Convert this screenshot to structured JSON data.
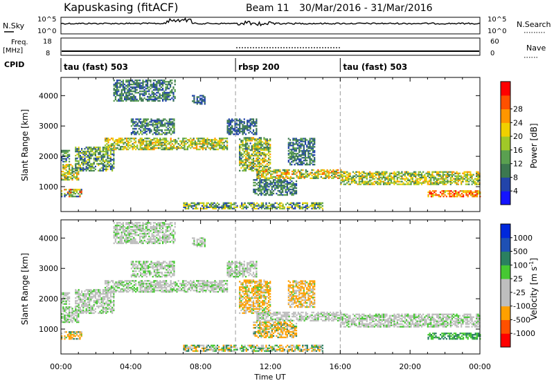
{
  "header": {
    "station": "Kapuskasing (fitACF)",
    "beam": "Beam 11",
    "dates": "30/Mar/2016 - 31/Mar/2016"
  },
  "strip": {
    "nsky_label": "N.Sky",
    "nsky_ticks": [
      "10^5",
      "10^0"
    ],
    "nsearch_label": "N.Search",
    "nsearch_ticks": [
      "10^5",
      "10^0"
    ],
    "freq_label": "Freq.",
    "freq_unit": "[MHz]",
    "freq_ticks": [
      "18",
      "8"
    ],
    "nave_label": "Nave",
    "nave_ticks": [
      "60",
      "0"
    ],
    "cpid_label": "CPID",
    "cpid_segments": [
      {
        "label": "tau (fast) 503",
        "start_h": 0,
        "end_h": 10
      },
      {
        "label": "rbsp 200",
        "start_h": 10,
        "end_h": 16
      },
      {
        "label": "tau (fast) 503",
        "start_h": 16,
        "end_h": 24
      }
    ]
  },
  "colors": {
    "power": [
      "#1414ff",
      "#2244aa",
      "#3c7850",
      "#5aa050",
      "#a0c828",
      "#f0d000",
      "#ff9600",
      "#ff5000",
      "#ff0000"
    ],
    "velocity": [
      "#ff0000",
      "#ff5000",
      "#ffa000",
      "#bebebe",
      "#bebebe",
      "#46c832",
      "#2a8060",
      "#1e50b4",
      "#0028dc"
    ]
  },
  "chart_data": [
    {
      "type": "heatmap",
      "title": "",
      "xlabel": "Time UT",
      "ylabel": "Slant Range [km]",
      "xlim_hours": [
        0,
        24
      ],
      "ylim": [
        180,
        4600
      ],
      "x_ticks": [
        "00:00",
        "04:00",
        "08:00",
        "12:00",
        "16:00",
        "20:00",
        "00:00"
      ],
      "y_ticks": [
        "1000",
        "2000",
        "3000",
        "4000"
      ],
      "y_tick_values": [
        1000,
        2000,
        3000,
        4000
      ],
      "colorbar": {
        "label": "Power [dB]",
        "range": [
          0,
          30
        ],
        "tick_labels": [
          "4",
          "8",
          "12",
          "16",
          "20",
          "24",
          "28"
        ]
      },
      "mode_boundaries_h": [
        10,
        16
      ]
    },
    {
      "type": "heatmap",
      "title": "",
      "xlabel": "Time UT",
      "ylabel": "Slant Range [km]",
      "xlim_hours": [
        0,
        24
      ],
      "ylim": [
        180,
        4600
      ],
      "x_ticks": [
        "00:00",
        "04:00",
        "08:00",
        "12:00",
        "16:00",
        "20:00",
        "00:00"
      ],
      "y_ticks": [
        "1000",
        "2000",
        "3000",
        "4000"
      ],
      "y_tick_values": [
        1000,
        2000,
        3000,
        4000
      ],
      "colorbar": {
        "label": "Velocity [m s",
        "label_sup": "-1",
        "label_end": "]",
        "tick_labels": [
          "1000",
          "500",
          "100",
          "25",
          "-25",
          "-100",
          "-500",
          "-1000"
        ]
      },
      "mode_boundaries_h": [
        10,
        16
      ]
    }
  ],
  "echo_regions": [
    {
      "t0": 0.0,
      "t1": 1.2,
      "r0": 650,
      "r1": 900,
      "pmin": 4,
      "pmax": 29,
      "vmin": -500,
      "vmax": 200
    },
    {
      "t0": 0.0,
      "t1": 1.0,
      "r0": 1200,
      "r1": 1700,
      "pmin": 8,
      "pmax": 22,
      "vmin": -100,
      "vmax": 100
    },
    {
      "t0": 0.0,
      "t1": 0.5,
      "r0": 1800,
      "r1": 2200,
      "pmin": 4,
      "pmax": 14,
      "vmin": -50,
      "vmax": 50
    },
    {
      "t0": 0.8,
      "t1": 3.0,
      "r0": 1500,
      "r1": 2300,
      "pmin": 4,
      "pmax": 18,
      "vmin": -50,
      "vmax": 50
    },
    {
      "t0": 2.5,
      "t1": 9.5,
      "r0": 2200,
      "r1": 2600,
      "pmin": 8,
      "pmax": 22,
      "vmin": -50,
      "vmax": 50
    },
    {
      "t0": 4.0,
      "t1": 6.5,
      "r0": 2700,
      "r1": 3200,
      "pmin": 4,
      "pmax": 14,
      "vmin": -50,
      "vmax": 50
    },
    {
      "t0": 3.0,
      "t1": 6.5,
      "r0": 3800,
      "r1": 4500,
      "pmin": 4,
      "pmax": 12,
      "vmin": -50,
      "vmax": 50
    },
    {
      "t0": 7.5,
      "t1": 8.2,
      "r0": 3700,
      "r1": 4000,
      "pmin": 4,
      "pmax": 10,
      "vmin": -50,
      "vmax": 50
    },
    {
      "t0": 9.5,
      "t1": 11.2,
      "r0": 2700,
      "r1": 3200,
      "pmin": 4,
      "pmax": 10,
      "vmin": -50,
      "vmax": 50
    },
    {
      "t0": 10.2,
      "t1": 12.0,
      "r0": 1500,
      "r1": 2600,
      "pmin": 6,
      "pmax": 22,
      "vmin": -400,
      "vmax": 100
    },
    {
      "t0": 11.2,
      "t1": 16.0,
      "r0": 1250,
      "r1": 1550,
      "pmin": 8,
      "pmax": 24,
      "vmin": -100,
      "vmax": 50
    },
    {
      "t0": 11.0,
      "t1": 13.5,
      "r0": 700,
      "r1": 1200,
      "pmin": 4,
      "pmax": 12,
      "vmin": -500,
      "vmax": 200
    },
    {
      "t0": 13.0,
      "t1": 14.5,
      "r0": 1700,
      "r1": 2600,
      "pmin": 4,
      "pmax": 12,
      "vmin": -300,
      "vmax": 50
    },
    {
      "t0": 16.0,
      "t1": 24.0,
      "r0": 1050,
      "r1": 1500,
      "pmin": 8,
      "pmax": 22,
      "vmin": -50,
      "vmax": 50
    },
    {
      "t0": 21.0,
      "t1": 24.0,
      "r0": 650,
      "r1": 850,
      "pmin": 16,
      "pmax": 29,
      "vmin": 25,
      "vmax": 150
    },
    {
      "t0": 7.0,
      "t1": 15.0,
      "r0": 250,
      "r1": 450,
      "pmin": 4,
      "pmax": 20,
      "vmin": -200,
      "vmax": 200
    }
  ]
}
